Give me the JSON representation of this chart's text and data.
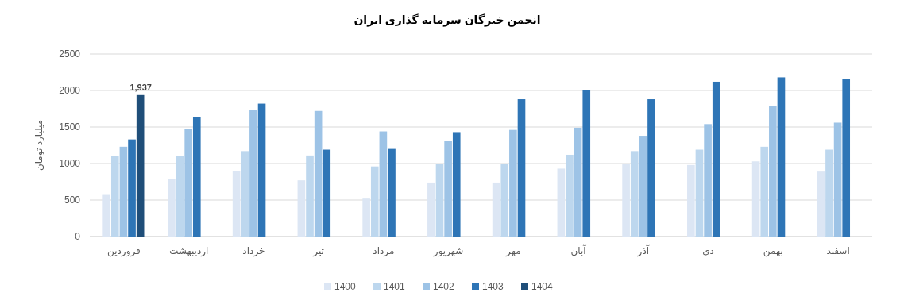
{
  "chart_data": {
    "type": "bar",
    "title": "انجمن خبرگان سرمایه گذاری ایران",
    "ylabel": "میلیارد تومان",
    "categories": [
      "فروردین",
      "اردیبهشت",
      "خرداد",
      "تیر",
      "مرداد",
      "شهریور",
      "مهر",
      "آبان",
      "آذر",
      "دی",
      "بهمن",
      "اسفند"
    ],
    "series": [
      {
        "name": "1400",
        "color": "#dce6f4",
        "values": [
          570,
          790,
          900,
          770,
          520,
          740,
          740,
          930,
          1000,
          980,
          1030,
          890
        ]
      },
      {
        "name": "1401",
        "color": "#bdd7ee",
        "values": [
          1100,
          1100,
          1170,
          1110,
          960,
          990,
          990,
          1120,
          1170,
          1190,
          1230,
          1190
        ]
      },
      {
        "name": "1402",
        "color": "#9dc3e6",
        "values": [
          1230,
          1470,
          1730,
          1720,
          1440,
          1310,
          1460,
          1490,
          1380,
          1540,
          1790,
          1560
        ]
      },
      {
        "name": "1403",
        "color": "#2e75b6",
        "values": [
          1330,
          1640,
          1820,
          1190,
          1200,
          1430,
          1880,
          2010,
          1880,
          2120,
          2180,
          2160
        ]
      },
      {
        "name": "1404",
        "color": "#1f4e79",
        "values": [
          1937,
          null,
          null,
          null,
          null,
          null,
          null,
          null,
          null,
          null,
          null,
          null
        ],
        "value_labels": [
          "1,937",
          null,
          null,
          null,
          null,
          null,
          null,
          null,
          null,
          null,
          null,
          null
        ]
      }
    ],
    "ylim": [
      0,
      2500
    ],
    "yticks": [
      0,
      500,
      1000,
      1500,
      2000,
      2500
    ],
    "grid": "y",
    "legend": "bottom"
  }
}
